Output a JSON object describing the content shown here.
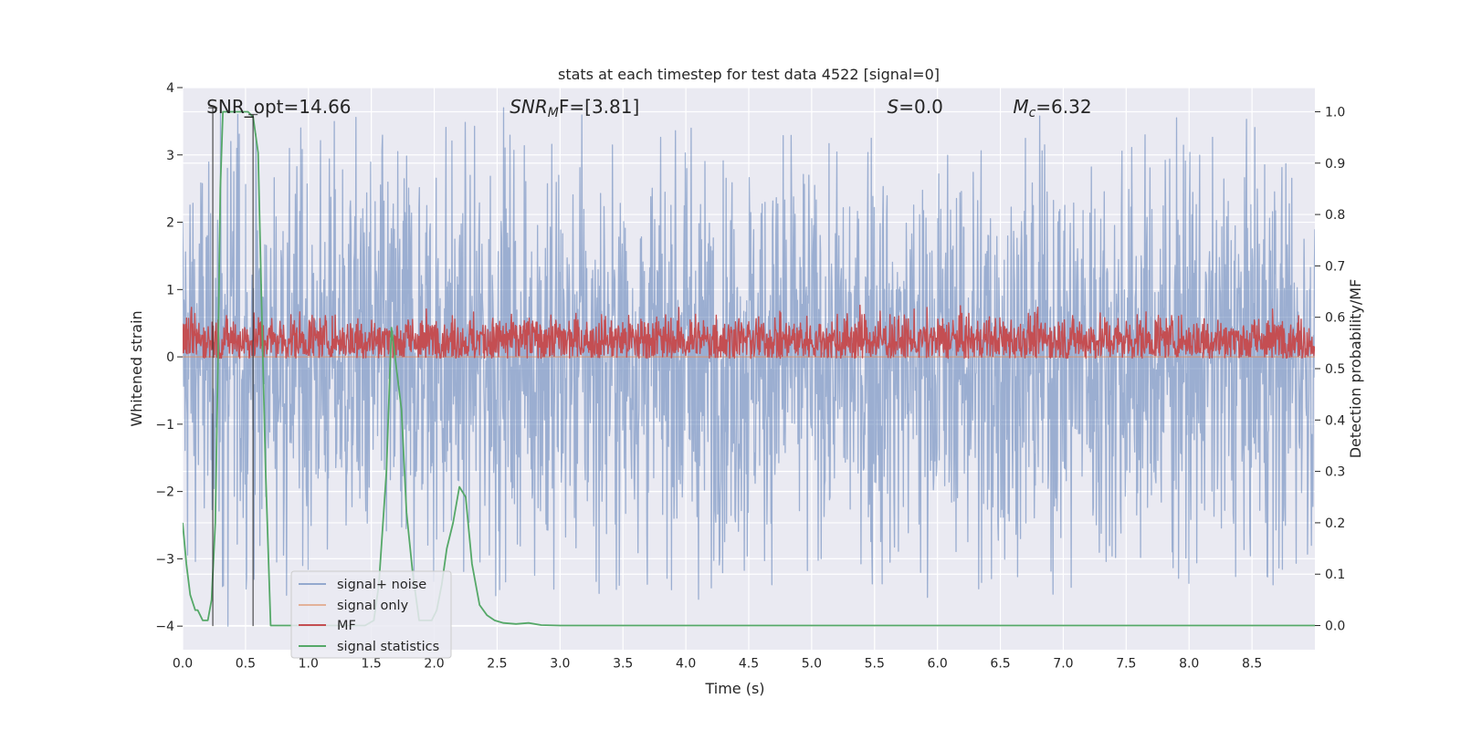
{
  "chart_data": {
    "type": "line",
    "title": "stats at each timestep for test data 4522 [signal=0]",
    "xlabel": "Time (s)",
    "ylabel": "Whitened strain",
    "y2label": "Detection probability/MF",
    "xlim": [
      0,
      9.0
    ],
    "ylim": [
      -4.35,
      4.0
    ],
    "y2lim": [
      -0.047,
      1.047
    ],
    "xticks": [
      0.0,
      0.5,
      1.0,
      1.5,
      2.0,
      2.5,
      3.0,
      3.5,
      4.0,
      4.5,
      5.0,
      5.5,
      6.0,
      6.5,
      7.0,
      7.5,
      8.0,
      8.5
    ],
    "xtick_labels": [
      "0.0",
      "0.5",
      "1.0",
      "1.5",
      "2.0",
      "2.5",
      "3.0",
      "3.5",
      "4.0",
      "4.5",
      "5.0",
      "5.5",
      "6.0",
      "6.5",
      "7.0",
      "7.5",
      "8.0",
      "8.5"
    ],
    "yticks": [
      -4,
      -3,
      -2,
      -1,
      0,
      1,
      2,
      3,
      4
    ],
    "ytick_labels": [
      "−4",
      "−3",
      "−2",
      "−1",
      "0",
      "1",
      "2",
      "3",
      "4"
    ],
    "y2ticks": [
      0.0,
      0.1,
      0.2,
      0.3,
      0.4,
      0.5,
      0.6,
      0.7,
      0.8,
      0.9,
      1.0
    ],
    "y2tick_labels": [
      "0.0",
      "0.1",
      "0.2",
      "0.3",
      "0.4",
      "0.5",
      "0.6",
      "0.7",
      "0.8",
      "0.9",
      "1.0"
    ],
    "grid": true,
    "legend_placement": "lower-left",
    "annotations": [
      {
        "id": "snr-opt",
        "x": 0.19,
        "main": "SNR_opt=14.66",
        "sub": "",
        "rest": ""
      },
      {
        "id": "snr-mf",
        "x": 2.6,
        "main": "SNR",
        "sub": "M",
        "rest": "F=[3.81]"
      },
      {
        "id": "s-stat",
        "x": 5.6,
        "main": "S",
        "sub": "",
        "rest": "=0.0"
      },
      {
        "id": "mc",
        "x": 6.6,
        "main": "M",
        "sub": "c",
        "rest": "=6.32"
      }
    ],
    "vertical_markers": [
      {
        "x": 0.24,
        "y_bottom": -4.0,
        "y_top": 3.7
      },
      {
        "x": 0.56,
        "y_bottom": -4.0,
        "y_top": 3.6
      }
    ],
    "series": [
      {
        "name": "signal+ noise",
        "axis": "left",
        "color": "#4c72b0",
        "style": "noise",
        "t_range": [
          0,
          9.0
        ],
        "n_samples": 2300,
        "approx_range": [
          -3.6,
          3.6
        ],
        "notable_peaks": [
          {
            "x": 0.3,
            "y": 3.7
          },
          {
            "x": 0.44,
            "y": 3.6
          },
          {
            "x": 2.55,
            "y": 3.7
          },
          {
            "x": 7.9,
            "y": 3.55
          },
          {
            "x": 4.1,
            "y": -3.6
          },
          {
            "x": 2.95,
            "y": -3.45
          },
          {
            "x": 6.35,
            "y": -3.35
          },
          {
            "x": 0.36,
            "y": -4.0
          }
        ]
      },
      {
        "name": "signal only",
        "axis": "left",
        "color": "#dd8452",
        "style": "flat",
        "y_value": 0.0
      },
      {
        "name": "MF",
        "axis": "right",
        "color": "#c44e52",
        "style": "noise",
        "t_range": [
          0,
          9.0
        ],
        "n_samples": 2300,
        "approx_range": [
          0.52,
          0.64
        ],
        "mean": 0.555
      },
      {
        "name": "signal statistics",
        "axis": "right",
        "color": "#55a868",
        "style": "line",
        "x": [
          0.0,
          0.03,
          0.06,
          0.1,
          0.12,
          0.16,
          0.2,
          0.23,
          0.26,
          0.28,
          0.3,
          0.32,
          0.36,
          0.45,
          0.52,
          0.56,
          0.6,
          0.63,
          0.66,
          0.7,
          0.74,
          0.8,
          0.95,
          1.2,
          1.45,
          1.52,
          1.56,
          1.62,
          1.66,
          1.7,
          1.74,
          1.78,
          1.83,
          1.88,
          1.93,
          1.98,
          2.02,
          2.06,
          2.1,
          2.15,
          2.2,
          2.25,
          2.3,
          2.36,
          2.42,
          2.48,
          2.55,
          2.65,
          2.75,
          2.85,
          3.0,
          3.5,
          4.5,
          6.0,
          7.5,
          9.0
        ],
        "y": [
          0.2,
          0.12,
          0.06,
          0.03,
          0.03,
          0.01,
          0.01,
          0.05,
          0.2,
          0.5,
          0.85,
          1.0,
          1.0,
          1.0,
          1.0,
          0.99,
          0.92,
          0.6,
          0.3,
          0.0,
          0.0,
          0.0,
          0.0,
          0.0,
          0.0,
          0.01,
          0.08,
          0.3,
          0.58,
          0.5,
          0.42,
          0.22,
          0.1,
          0.01,
          0.01,
          0.01,
          0.03,
          0.08,
          0.15,
          0.2,
          0.27,
          0.25,
          0.12,
          0.04,
          0.02,
          0.01,
          0.005,
          0.003,
          0.005,
          0.001,
          0.0,
          0.0,
          0.0,
          0.0,
          0.0,
          0.0
        ]
      }
    ]
  }
}
